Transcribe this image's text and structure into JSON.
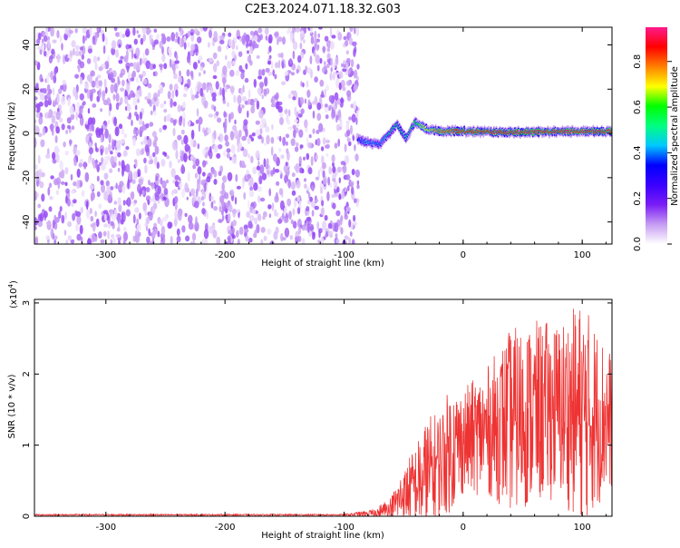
{
  "title": "C2E3.2024.071.18.32.G03",
  "chart_data": [
    {
      "type": "heatmap",
      "xlabel": "Height of straight line (km)",
      "ylabel": "Frequency (Hz)",
      "xlim": [
        -360,
        125
      ],
      "ylim": [
        -50,
        48
      ],
      "xticks": [
        -300,
        -200,
        -100,
        0,
        100
      ],
      "yticks": [
        -40,
        -20,
        0,
        20,
        40
      ],
      "colorbar": {
        "label": "Normalized spectral amplitude",
        "range": [
          0,
          0.95
        ],
        "ticks": [
          "0.0",
          "0.2",
          "0.4",
          "0.6",
          "0.8"
        ],
        "tick_values": [
          0,
          0.2,
          0.4,
          0.6,
          0.8
        ],
        "colors": [
          "#ffffff",
          "#c69cf2",
          "#7a1cf5",
          "#3a00ff",
          "#0000ff",
          "#00c8ff",
          "#00ff80",
          "#00ff00",
          "#ffff00",
          "#ff8000",
          "#ff0000",
          "#ff1a8c"
        ]
      },
      "noise_region": {
        "x_range": [
          -360,
          -88
        ],
        "y_range": [
          -50,
          48
        ],
        "amplitude_range": [
          0.02,
          0.15
        ]
      },
      "signal_track": [
        {
          "x": -88,
          "y": -3,
          "amplitude": 0.35
        },
        {
          "x": -80,
          "y": -4,
          "amplitude": 0.45
        },
        {
          "x": -70,
          "y": -5,
          "amplitude": 0.4
        },
        {
          "x": -62,
          "y": 0,
          "amplitude": 0.5
        },
        {
          "x": -55,
          "y": 4,
          "amplitude": 0.55
        },
        {
          "x": -48,
          "y": -2,
          "amplitude": 0.5
        },
        {
          "x": -40,
          "y": 5,
          "amplitude": 0.6
        },
        {
          "x": -30,
          "y": 2,
          "amplitude": 0.7
        },
        {
          "x": -20,
          "y": 1,
          "amplitude": 0.8
        },
        {
          "x": 0,
          "y": 1,
          "amplitude": 0.85
        },
        {
          "x": 40,
          "y": 0.5,
          "amplitude": 0.9
        },
        {
          "x": 80,
          "y": 0.8,
          "amplitude": 0.9
        },
        {
          "x": 125,
          "y": 1,
          "amplitude": 0.9
        }
      ]
    },
    {
      "type": "line",
      "xlabel": "Height of straight line (km)",
      "ylabel": "SNR (10 * v/v)",
      "yexponent": "(x10",
      "yexponent_power": "4",
      "yexponent_close": ")",
      "xlim": [
        -360,
        125
      ],
      "ylim": [
        0,
        3.05
      ],
      "xticks": [
        -300,
        -200,
        -100,
        0,
        100
      ],
      "yticks": [
        0,
        1,
        2,
        3
      ],
      "color": "#ee3333",
      "envelope": {
        "x": [
          -360,
          -100,
          -75,
          -60,
          -50,
          -40,
          -30,
          -20,
          -10,
          0,
          20,
          40,
          60,
          80,
          100,
          125
        ],
        "mean": [
          0.02,
          0.02,
          0.04,
          0.12,
          0.3,
          0.45,
          0.55,
          0.75,
          0.95,
          1.05,
          1.2,
          1.35,
          1.45,
          1.5,
          1.45,
          1.35
        ],
        "max": [
          0.03,
          0.03,
          0.1,
          0.3,
          0.7,
          1.0,
          1.4,
          1.5,
          1.85,
          1.8,
          2.1,
          2.65,
          2.75,
          2.75,
          3.05,
          2.3
        ]
      }
    }
  ]
}
